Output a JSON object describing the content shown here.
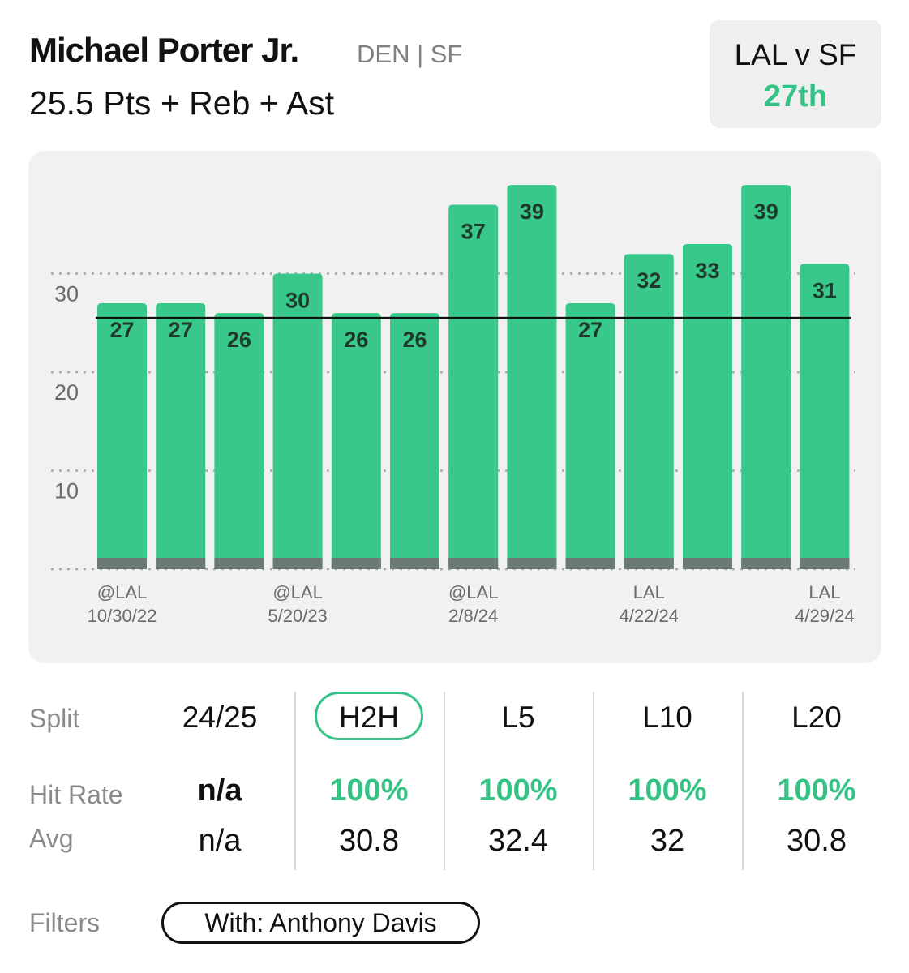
{
  "header": {
    "player_name": "Michael Porter Jr.",
    "team_info": "DEN | SF",
    "prop_line": "25.5 Pts + Reb + Ast"
  },
  "matchup": {
    "title": "LAL v SF",
    "rank": "27th"
  },
  "chart_data": {
    "type": "bar",
    "values": [
      27,
      27,
      26,
      30,
      26,
      26,
      37,
      39,
      27,
      32,
      33,
      39,
      31
    ],
    "x_labels": [
      {
        "index": 0,
        "opponent": "@LAL",
        "date": "10/30/22"
      },
      {
        "index": 3,
        "opponent": "@LAL",
        "date": "5/20/23"
      },
      {
        "index": 6,
        "opponent": "@LAL",
        "date": "2/8/24"
      },
      {
        "index": 9,
        "opponent": "LAL",
        "date": "4/22/24"
      },
      {
        "index": 12,
        "opponent": "LAL",
        "date": "4/29/24"
      }
    ],
    "y_ticks": [
      10,
      20,
      30
    ],
    "ylim": [
      0,
      40
    ],
    "reference_line": 25.5,
    "grid": true,
    "colors": {
      "bar": "#38c98a",
      "bar_base": "#6b7a72",
      "line": "#111111",
      "grid": "#a8a8a8"
    }
  },
  "stats_table": {
    "row_labels": {
      "split": "Split",
      "hit_rate": "Hit Rate",
      "avg": "Avg"
    },
    "columns": [
      {
        "split": "24/25",
        "hit_rate": "n/a",
        "avg": "n/a",
        "selected": false
      },
      {
        "split": "H2H",
        "hit_rate": "100%",
        "avg": "30.8",
        "selected": true
      },
      {
        "split": "L5",
        "hit_rate": "100%",
        "avg": "32.4",
        "selected": false
      },
      {
        "split": "L10",
        "hit_rate": "100%",
        "avg": "32",
        "selected": false
      },
      {
        "split": "L20",
        "hit_rate": "100%",
        "avg": "30.8",
        "selected": false
      }
    ]
  },
  "filters": {
    "label": "Filters",
    "chip": "With: Anthony Davis"
  },
  "colors": {
    "accent": "#35c285",
    "panel": "#f1f1f1"
  }
}
